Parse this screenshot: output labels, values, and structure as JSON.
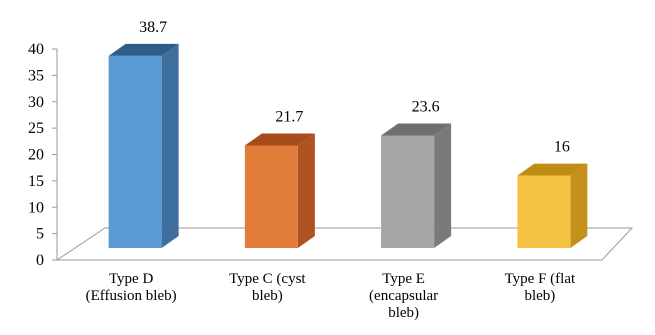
{
  "chart_data": {
    "type": "bar",
    "title": "",
    "xlabel": "",
    "ylabel": "",
    "ylim": [
      0,
      40
    ],
    "yticks": [
      0,
      5,
      10,
      15,
      20,
      25,
      30,
      35,
      40
    ],
    "grid": false,
    "legend": "none",
    "categories": [
      [
        "Type D",
        "(Effusion bleb)"
      ],
      [
        "Type C (cyst",
        "bleb)"
      ],
      [
        "Type E",
        "(encapsular",
        "bleb)"
      ],
      [
        "Type F (flat",
        "bleb)"
      ]
    ],
    "values": [
      38.7,
      21.7,
      23.6,
      16
    ],
    "value_labels": [
      "38.7",
      "21.7",
      "23.6",
      "16"
    ],
    "colors": [
      {
        "front": "#5b9bd5",
        "side": "#3d6e9c",
        "top": "#2e5d8a"
      },
      {
        "front": "#e07b3a",
        "side": "#ad5220",
        "top": "#a64b1a"
      },
      {
        "front": "#a5a5a5",
        "side": "#7a7a7a",
        "top": "#6f6f6f"
      },
      {
        "front": "#f5c243",
        "side": "#c4921a",
        "top": "#bf8c14"
      }
    ]
  }
}
